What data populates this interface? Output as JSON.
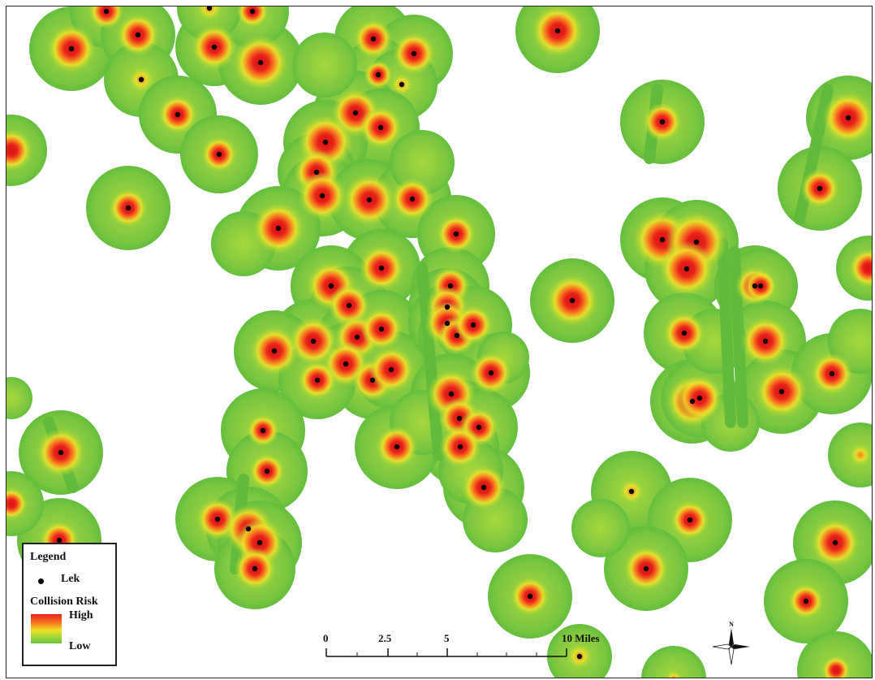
{
  "legend": {
    "title": "Legend",
    "lek_label": "Lek",
    "risk_title": "Collision Risk",
    "high_label": "High",
    "low_label": "Low",
    "ramp_colors": [
      "#e8211c",
      "#f77a1f",
      "#f2e228",
      "#9ad53a",
      "#6cc13c"
    ]
  },
  "scale_bar": {
    "labels": [
      "0",
      "2.5",
      "5",
      "10 Miles"
    ]
  },
  "north_arrow": {
    "label": "N",
    "icon": "compass-rose-icon"
  },
  "colors": {
    "low": "#6cc13c",
    "low_mid": "#9ad53a",
    "mid": "#f2e228",
    "mid_high": "#f77a1f",
    "high": "#e8211c",
    "background": "#ffffff"
  }
}
